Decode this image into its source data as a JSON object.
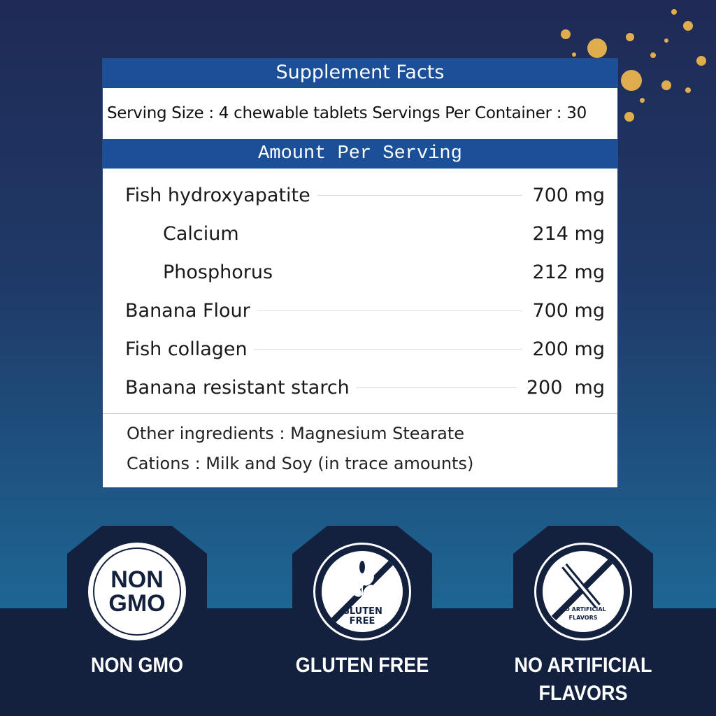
{
  "title": "Supplement Facts",
  "serving": "Serving Size : 4 chewable tablets  Servings Per Container : 30",
  "amount_header": "Amount Per Serving",
  "rows": [
    {
      "name": "Fish hydroxyapatite",
      "amount": "700 mg",
      "sub": false
    },
    {
      "name": "Calcium",
      "amount": "214 mg",
      "sub": true
    },
    {
      "name": "Phosphorus",
      "amount": "212 mg",
      "sub": true
    },
    {
      "name": "Banana Flour",
      "amount": "700 mg",
      "sub": false
    },
    {
      "name": "Fish collagen",
      "amount": "200 mg",
      "sub": false
    },
    {
      "name": "Banana resistant starch",
      "amount": "200  mg",
      "sub": false
    }
  ],
  "other_ingredients": "Other ingredients :  Magnesium Stearate",
  "cations": "Cations :  Milk and Soy (in trace amounts)",
  "badges": [
    {
      "icon": "non-gmo-icon",
      "icon_text": [
        "NON",
        "GMO"
      ],
      "label": "NON GMO"
    },
    {
      "icon": "gluten-free-icon",
      "icon_text": [
        "GLUTEN",
        "FREE"
      ],
      "label": "GLUTEN FREE"
    },
    {
      "icon": "no-artificial-flavors-icon",
      "icon_text": [
        "NO ARTIFICIAL",
        "FLAVORS"
      ],
      "label": "NO ARTIFICIAL FLAVORS"
    }
  ],
  "colors": {
    "header_blue": "#1b4f97",
    "navy": "#13213f",
    "gold": "#e0ad4e"
  }
}
